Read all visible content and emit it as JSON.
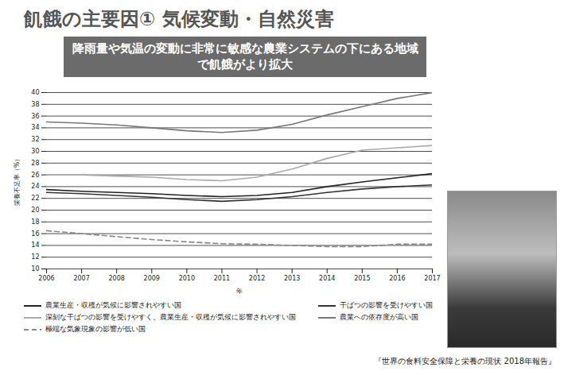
{
  "chart_data": {
    "type": "line",
    "title": "飢餓の主要因① 気候変動・自然災害",
    "subtitle": "降雨量や気温の変動に非常に敏感な農業システムの下にある地域で飢餓がより拡大",
    "x_label": "年",
    "y_label": "栄養不足率（%）",
    "source": "『世界の食料安全保障と栄養の現状 2018年報告』",
    "x": [
      2006,
      2007,
      2008,
      2009,
      2010,
      2011,
      2012,
      2013,
      2014,
      2015,
      2016,
      2017
    ],
    "xlim": [
      2006,
      2017
    ],
    "xticks": [
      2006,
      2007,
      2008,
      2009,
      2010,
      2011,
      2012,
      2013,
      2014,
      2015,
      2016,
      2017
    ],
    "ylim": [
      10,
      40
    ],
    "yticks": [
      10,
      12,
      14,
      16,
      18,
      20,
      22,
      24,
      26,
      28,
      30,
      32,
      34,
      36,
      38,
      40
    ],
    "grid": true,
    "legend": "bottom",
    "series": [
      {
        "name": "農業生産・収穫が気候に影響されやすい国",
        "color": "#222222",
        "line_style": "solid",
        "values": [
          23.5,
          23.2,
          23.0,
          22.8,
          22.5,
          22.3,
          22.5,
          23.0,
          24.0,
          24.8,
          25.5,
          26.2
        ]
      },
      {
        "name": "干ばつの影響を受けやすい国",
        "color": "#333333",
        "line_style": "solid",
        "values": [
          23.0,
          22.8,
          22.5,
          22.2,
          21.8,
          21.5,
          21.8,
          22.3,
          23.0,
          23.6,
          24.0,
          24.3
        ]
      },
      {
        "name": "深刻な干ばつの影響を受けやすく、農業生産・収穫が気候に影響されやすい国",
        "color": "#aaaaaa",
        "line_style": "solid",
        "values": [
          26.0,
          26.0,
          25.8,
          25.6,
          25.2,
          25.0,
          25.6,
          27.0,
          28.8,
          30.2,
          30.6,
          31.0
        ]
      },
      {
        "name": "農業への依存度が高い国",
        "color": "#777777",
        "line_style": "solid",
        "values": [
          35.0,
          34.8,
          34.5,
          34.0,
          33.5,
          33.2,
          33.6,
          34.6,
          36.2,
          37.6,
          39.0,
          40.0
        ]
      },
      {
        "name": "極端な気象現象の影響が低い国",
        "color": "#888888",
        "line_style": "dashed",
        "values": [
          16.5,
          16.0,
          15.5,
          15.0,
          14.6,
          14.3,
          14.2,
          14.0,
          13.8,
          13.8,
          14.2,
          14.2
        ]
      }
    ]
  }
}
